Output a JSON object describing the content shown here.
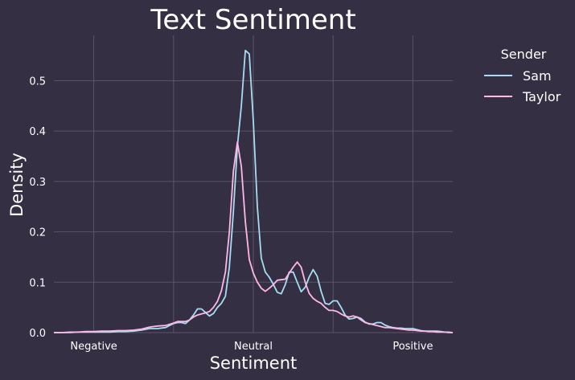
{
  "chart_data": {
    "type": "line",
    "title": "Text Sentiment",
    "xlabel": "Sentiment",
    "ylabel": "Density",
    "xlim": [
      -1,
      1
    ],
    "ylim": [
      0,
      0.59
    ],
    "grid": true,
    "background": "#342f43",
    "grid_color": "#5a5468",
    "text_color": "#ffffff",
    "x_tick_values": [
      -0.8,
      0,
      0.8
    ],
    "x_tick_labels": [
      "Negative",
      "Neutral",
      "Positive"
    ],
    "y_ticks": [
      "0.0",
      "0.1",
      "0.2",
      "0.3",
      "0.4",
      "0.5"
    ],
    "y_tick_values": [
      0,
      0.1,
      0.2,
      0.3,
      0.4,
      0.5
    ],
    "legend": {
      "title": "Sender",
      "position": "outside-right-top"
    },
    "x": [
      -1.0,
      -0.96,
      -0.92,
      -0.88,
      -0.84,
      -0.8,
      -0.76,
      -0.72,
      -0.68,
      -0.64,
      -0.6,
      -0.56,
      -0.52,
      -0.48,
      -0.44,
      -0.4,
      -0.38,
      -0.36,
      -0.34,
      -0.32,
      -0.3,
      -0.28,
      -0.26,
      -0.24,
      -0.22,
      -0.2,
      -0.18,
      -0.16,
      -0.14,
      -0.12,
      -0.1,
      -0.08,
      -0.06,
      -0.04,
      -0.02,
      0.0,
      0.02,
      0.04,
      0.06,
      0.08,
      0.1,
      0.12,
      0.14,
      0.16,
      0.18,
      0.2,
      0.22,
      0.24,
      0.26,
      0.28,
      0.3,
      0.32,
      0.34,
      0.36,
      0.38,
      0.4,
      0.42,
      0.44,
      0.46,
      0.48,
      0.5,
      0.52,
      0.54,
      0.56,
      0.58,
      0.6,
      0.62,
      0.64,
      0.66,
      0.68,
      0.7,
      0.72,
      0.74,
      0.76,
      0.78,
      0.8,
      0.82,
      0.84,
      0.86,
      0.88,
      0.9,
      0.92,
      0.94,
      0.96,
      0.98,
      1.0
    ],
    "series": [
      {
        "name": "Sam",
        "color": "#a8dcf5",
        "values": [
          0.0,
          0.0,
          0.0,
          0.001,
          0.001,
          0.001,
          0.001,
          0.001,
          0.002,
          0.002,
          0.003,
          0.005,
          0.008,
          0.008,
          0.01,
          0.018,
          0.02,
          0.02,
          0.018,
          0.025,
          0.035,
          0.047,
          0.047,
          0.04,
          0.033,
          0.038,
          0.05,
          0.058,
          0.072,
          0.13,
          0.24,
          0.37,
          0.45,
          0.56,
          0.553,
          0.42,
          0.25,
          0.148,
          0.12,
          0.11,
          0.096,
          0.08,
          0.077,
          0.095,
          0.12,
          0.12,
          0.1,
          0.081,
          0.09,
          0.11,
          0.125,
          0.112,
          0.082,
          0.058,
          0.056,
          0.063,
          0.063,
          0.05,
          0.035,
          0.027,
          0.028,
          0.031,
          0.028,
          0.021,
          0.017,
          0.017,
          0.02,
          0.02,
          0.015,
          0.012,
          0.01,
          0.009,
          0.009,
          0.008,
          0.008,
          0.008,
          0.006,
          0.004,
          0.003,
          0.003,
          0.003,
          0.003,
          0.002,
          0.001,
          0.001,
          0.0
        ]
      },
      {
        "name": "Taylor",
        "color": "#ffb8e6",
        "values": [
          0.0,
          0.0,
          0.001,
          0.001,
          0.002,
          0.002,
          0.003,
          0.003,
          0.004,
          0.004,
          0.005,
          0.007,
          0.011,
          0.013,
          0.014,
          0.019,
          0.022,
          0.022,
          0.022,
          0.025,
          0.031,
          0.035,
          0.037,
          0.039,
          0.042,
          0.05,
          0.062,
          0.083,
          0.12,
          0.2,
          0.32,
          0.378,
          0.33,
          0.22,
          0.145,
          0.118,
          0.1,
          0.088,
          0.082,
          0.088,
          0.095,
          0.104,
          0.105,
          0.106,
          0.118,
          0.13,
          0.14,
          0.13,
          0.1,
          0.078,
          0.068,
          0.062,
          0.058,
          0.05,
          0.044,
          0.044,
          0.042,
          0.037,
          0.033,
          0.031,
          0.033,
          0.031,
          0.025,
          0.02,
          0.018,
          0.016,
          0.014,
          0.012,
          0.01,
          0.01,
          0.009,
          0.008,
          0.007,
          0.006,
          0.005,
          0.005,
          0.004,
          0.003,
          0.003,
          0.002,
          0.002,
          0.001,
          0.001,
          0.001,
          0.0,
          0.0
        ]
      }
    ]
  }
}
